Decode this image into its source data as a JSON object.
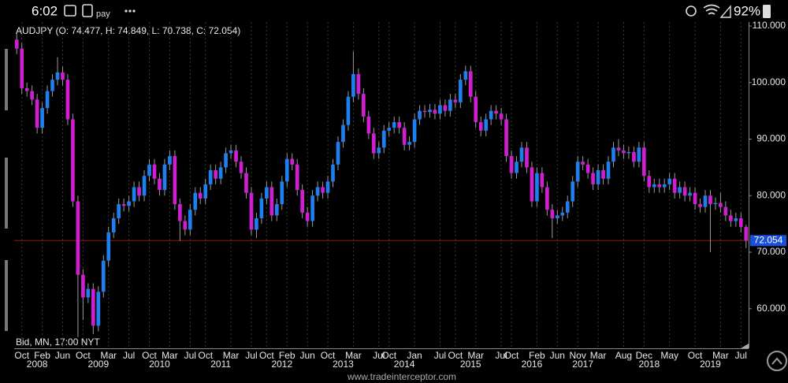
{
  "status_bar": {
    "time": "6:02",
    "pay_text": "pay",
    "battery": "92%"
  },
  "chart_data": {
    "type": "candlestick",
    "title": "AUDJPY (O: 74.477, H: 74.849, L: 70.738, C: 72.054)",
    "annotation": "Bid, MN, 17:00 NYT",
    "watermark": "www.tradeinterceptor.com",
    "up_color": "#1e80f0",
    "down_color": "#d21ed2",
    "last_price": 72.054,
    "last_price_color": "#8b1a1a",
    "grid": true,
    "ylim": [
      53,
      110.7
    ],
    "yticks": [
      {
        "value": 60,
        "label": "60.000"
      },
      {
        "value": 70,
        "label": "70.000"
      },
      {
        "value": 80,
        "label": "80.000"
      },
      {
        "value": 90,
        "label": "90.000"
      },
      {
        "value": 100,
        "label": "100.000"
      },
      {
        "value": 110,
        "label": "110.000"
      }
    ],
    "categories": [
      null,
      "Oct",
      null,
      null,
      null,
      "Feb",
      null,
      null,
      null,
      "Jun",
      null,
      null,
      null,
      "Oct",
      null,
      null,
      null,
      null,
      "Mar",
      null,
      null,
      null,
      "Jul",
      null,
      null,
      null,
      "Oct",
      null,
      null,
      null,
      "Mar",
      null,
      null,
      null,
      "Jul",
      null,
      null,
      "Oct",
      null,
      null,
      null,
      null,
      "Mar",
      null,
      null,
      null,
      "Jul",
      null,
      null,
      "Oct",
      null,
      null,
      null,
      "Feb",
      null,
      null,
      null,
      "Jun",
      null,
      null,
      null,
      "Oct",
      null,
      null,
      null,
      null,
      "Mar",
      null,
      null,
      null,
      null,
      "Jul",
      null,
      "Oct",
      null,
      null,
      null,
      null,
      "Jan",
      null,
      null,
      null,
      null,
      "Jul",
      null,
      null,
      "Oct",
      null,
      null,
      null,
      "Mar",
      null,
      null,
      null,
      null,
      "Jul",
      null,
      "Oct",
      null,
      null,
      null,
      null,
      "Feb",
      null,
      null,
      null,
      "Jun",
      null,
      null,
      null,
      "Nov",
      null,
      null,
      null,
      "Mar",
      null,
      null,
      null,
      null,
      "Aug",
      null,
      null,
      null,
      "Dec",
      null,
      null,
      null,
      null,
      "May",
      null,
      null,
      null,
      null,
      "Oct",
      null,
      null,
      null,
      null,
      "Mar",
      null,
      null,
      null,
      "Jul",
      null
    ],
    "year_labels": [
      null,
      null,
      null,
      null,
      "2008",
      null,
      null,
      null,
      null,
      null,
      null,
      null,
      null,
      null,
      null,
      null,
      "2009",
      null,
      null,
      null,
      null,
      null,
      null,
      null,
      null,
      null,
      null,
      null,
      "2010",
      null,
      null,
      null,
      null,
      null,
      null,
      null,
      null,
      null,
      null,
      null,
      "2011",
      null,
      null,
      null,
      null,
      null,
      null,
      null,
      null,
      null,
      null,
      null,
      "2012",
      null,
      null,
      null,
      null,
      null,
      null,
      null,
      null,
      null,
      null,
      null,
      "2013",
      null,
      null,
      null,
      null,
      null,
      null,
      null,
      null,
      null,
      null,
      null,
      "2014",
      null,
      null,
      null,
      null,
      null,
      null,
      null,
      null,
      null,
      null,
      null,
      null,
      "2015",
      null,
      null,
      null,
      null,
      null,
      null,
      null,
      null,
      null,
      null,
      null,
      "2016",
      null,
      null,
      null,
      null,
      null,
      null,
      null,
      null,
      null,
      "2017",
      null,
      null,
      null,
      null,
      null,
      null,
      null,
      null,
      null,
      null,
      null,
      null,
      "2018",
      null,
      null,
      null,
      null,
      null,
      null,
      null,
      null,
      null,
      null,
      null,
      "2019",
      null,
      null,
      null,
      null,
      null,
      null,
      null
    ],
    "open": [
      107.6,
      106.0,
      99.0,
      98.5,
      97.0,
      92.0,
      95.5,
      98.5,
      100.5,
      101.8,
      100.5,
      93.5,
      79.0,
      66.0,
      62.0,
      63.5,
      57.0,
      63.0,
      68.5,
      73.5,
      76.0,
      78.5,
      78.2,
      79.0,
      81.5,
      80.0,
      83.5,
      85.5,
      83.0,
      81.0,
      85.5,
      87.0,
      78.5,
      75.5,
      74.0,
      77.5,
      80.5,
      79.5,
      82.0,
      84.5,
      83.0,
      85.0,
      87.5,
      88.0,
      86.0,
      84.0,
      80.5,
      74.0,
      76.0,
      79.5,
      81.5,
      76.5,
      78.5,
      82.5,
      86.5,
      85.5,
      81.0,
      77.0,
      75.5,
      80.0,
      81.5,
      80.5,
      82.5,
      85.5,
      89.5,
      92.5,
      97.5,
      101.5,
      98.0,
      94.0,
      91.0,
      87.5,
      88.5,
      91.5,
      92.0,
      93.0,
      92.0,
      89.0,
      89.5,
      93.5,
      95.0,
      94.8,
      95.2,
      94.5,
      96.0,
      95.0,
      97.0,
      96.5,
      100.5,
      102.0,
      97.5,
      93.0,
      91.5,
      93.5,
      95.0,
      94.5,
      93.5,
      87.0,
      84.0,
      86.0,
      88.5,
      85.0,
      79.0,
      84.0,
      81.5,
      77.5,
      76.0,
      76.5,
      77.0,
      79.0,
      82.5,
      86.0,
      85.5,
      84.0,
      82.0,
      84.5,
      83.0,
      86.0,
      88.5,
      88.0,
      87.5,
      87.7,
      86.0,
      88.5,
      83.5,
      81.5,
      82.0,
      81.5,
      82.0,
      83.0,
      80.5,
      81.5,
      80.0,
      80.5,
      78.5,
      78.0,
      80.0,
      78.5,
      78.7,
      78.0,
      76.5,
      75.5,
      76.0,
      74.477
    ],
    "high": [
      108.6,
      107.0,
      100.0,
      99.5,
      98.0,
      96.5,
      99.5,
      101.5,
      104.5,
      102.8,
      101.5,
      94.5,
      80.0,
      67.0,
      64.5,
      64.5,
      64.0,
      69.5,
      74.5,
      77.0,
      79.5,
      79.5,
      80.0,
      82.5,
      82.5,
      84.5,
      86.5,
      86.5,
      84.0,
      86.5,
      88.0,
      88.0,
      79.5,
      76.5,
      78.5,
      81.5,
      81.5,
      83.0,
      85.5,
      85.5,
      86.0,
      88.5,
      89.0,
      89.0,
      87.0,
      85.0,
      81.5,
      77.0,
      80.5,
      82.5,
      82.5,
      79.5,
      83.5,
      87.5,
      87.5,
      86.5,
      82.0,
      78.0,
      81.0,
      82.5,
      82.5,
      83.5,
      86.5,
      90.5,
      93.5,
      98.5,
      105.5,
      102.5,
      99.0,
      95.0,
      92.0,
      89.5,
      92.5,
      93.0,
      94.0,
      94.0,
      93.0,
      90.5,
      94.5,
      96.0,
      96.0,
      96.2,
      96.2,
      97.0,
      97.0,
      98.0,
      98.0,
      101.5,
      103.0,
      103.0,
      98.5,
      94.0,
      94.5,
      96.0,
      96.0,
      95.5,
      94.5,
      88.0,
      87.0,
      89.5,
      89.5,
      86.0,
      85.0,
      85.0,
      82.5,
      78.5,
      77.5,
      78.0,
      80.0,
      83.5,
      87.0,
      87.0,
      86.5,
      85.0,
      85.5,
      85.5,
      87.0,
      89.5,
      90.0,
      89.0,
      88.7,
      88.7,
      89.5,
      89.5,
      84.5,
      83.0,
      83.0,
      83.0,
      84.0,
      84.0,
      82.5,
      82.5,
      81.5,
      81.5,
      79.5,
      81.0,
      81.0,
      79.7,
      80.5,
      79.0,
      77.5,
      77.0,
      77.0,
      74.849
    ],
    "low": [
      105.0,
      98.0,
      97.5,
      96.0,
      91.0,
      91.0,
      94.5,
      97.5,
      99.5,
      99.5,
      92.5,
      78.0,
      55.0,
      58.0,
      61.0,
      55.5,
      56.0,
      62.0,
      67.5,
      72.5,
      75.0,
      77.2,
      77.2,
      78.0,
      79.0,
      79.0,
      82.5,
      82.0,
      80.0,
      80.0,
      84.5,
      77.5,
      72.0,
      73.0,
      73.0,
      76.5,
      78.5,
      78.5,
      81.0,
      82.0,
      82.0,
      84.0,
      86.5,
      85.0,
      83.0,
      79.5,
      73.0,
      72.5,
      75.0,
      78.5,
      75.5,
      75.5,
      77.5,
      81.5,
      84.5,
      80.0,
      76.0,
      74.5,
      74.5,
      79.0,
      79.5,
      79.5,
      81.5,
      84.5,
      88.5,
      91.5,
      96.5,
      97.0,
      93.0,
      90.0,
      86.5,
      86.5,
      87.5,
      90.5,
      91.0,
      91.0,
      88.0,
      88.0,
      88.5,
      92.5,
      93.8,
      93.8,
      93.5,
      93.5,
      94.0,
      94.0,
      95.5,
      95.5,
      99.5,
      96.5,
      92.0,
      90.5,
      90.5,
      92.5,
      93.5,
      92.5,
      86.0,
      83.0,
      83.0,
      85.0,
      84.0,
      78.0,
      78.0,
      80.5,
      76.5,
      72.5,
      75.0,
      75.5,
      76.0,
      78.0,
      81.5,
      84.5,
      83.0,
      81.0,
      81.0,
      82.0,
      82.0,
      85.0,
      87.0,
      86.5,
      86.5,
      85.0,
      85.0,
      82.5,
      80.5,
      80.5,
      80.5,
      80.5,
      81.0,
      79.5,
      79.5,
      79.0,
      79.0,
      77.5,
      77.0,
      77.0,
      70.0,
      77.5,
      77.0,
      75.5,
      74.5,
      74.5,
      73.5,
      70.738
    ],
    "close": [
      106.0,
      99.0,
      98.5,
      97.0,
      92.0,
      95.5,
      98.5,
      100.5,
      101.8,
      100.5,
      93.5,
      79.0,
      66.0,
      62.0,
      63.5,
      57.0,
      63.0,
      68.5,
      73.5,
      76.0,
      78.5,
      78.2,
      79.0,
      81.5,
      80.0,
      83.5,
      85.5,
      83.0,
      81.0,
      85.5,
      87.0,
      78.5,
      75.5,
      74.0,
      77.5,
      80.5,
      79.5,
      82.0,
      84.5,
      83.0,
      85.0,
      87.5,
      88.0,
      86.0,
      84.0,
      80.5,
      74.0,
      76.0,
      79.5,
      81.5,
      76.5,
      78.5,
      82.5,
      86.5,
      85.5,
      81.0,
      77.0,
      75.5,
      80.0,
      81.5,
      80.5,
      82.5,
      85.5,
      89.5,
      92.5,
      97.5,
      101.5,
      98.0,
      94.0,
      91.0,
      87.5,
      88.5,
      91.5,
      92.0,
      93.0,
      92.0,
      89.0,
      89.5,
      93.5,
      95.0,
      94.8,
      95.2,
      94.5,
      96.0,
      95.0,
      97.0,
      96.5,
      100.5,
      102.0,
      97.5,
      93.0,
      91.5,
      93.5,
      95.0,
      94.5,
      93.5,
      87.0,
      84.0,
      86.0,
      88.5,
      85.0,
      79.0,
      84.0,
      81.5,
      77.5,
      76.0,
      76.5,
      77.0,
      79.0,
      82.5,
      86.0,
      85.5,
      84.0,
      82.0,
      84.5,
      83.0,
      86.0,
      88.5,
      88.0,
      87.5,
      87.7,
      86.0,
      88.5,
      83.5,
      81.5,
      82.0,
      81.5,
      82.0,
      83.0,
      80.5,
      81.5,
      80.0,
      80.5,
      78.5,
      78.0,
      80.0,
      78.5,
      78.7,
      78.0,
      76.5,
      75.5,
      76.0,
      74.477,
      72.054
    ]
  }
}
